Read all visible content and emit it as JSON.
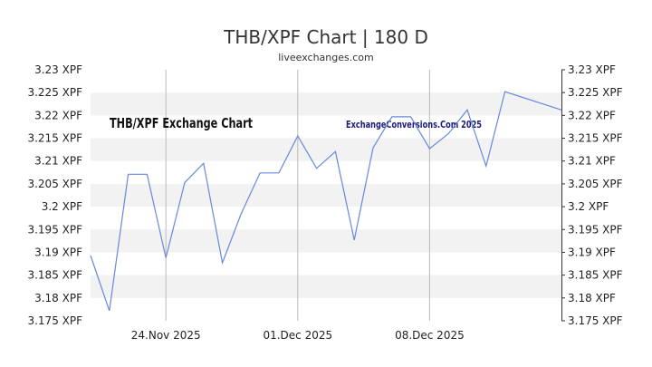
{
  "chart_data": {
    "type": "line",
    "title": "THB/XPF Chart | 180 D",
    "subtitle": "liveexchanges.com",
    "watermark_left": "THB/XPF Exchange Chart",
    "watermark_right": "ExchangeConversions.Com 2025",
    "y_unit": "XPF",
    "ylim": [
      3.175,
      3.23
    ],
    "y_ticks": [
      "3.23 XPF",
      "3.225 XPF",
      "3.22 XPF",
      "3.215 XPF",
      "3.21 XPF",
      "3.205 XPF",
      "3.2 XPF",
      "3.195 XPF",
      "3.19 XPF",
      "3.185 XPF",
      "3.18 XPF",
      "3.175 XPF"
    ],
    "y_tick_values": [
      3.23,
      3.225,
      3.22,
      3.215,
      3.21,
      3.205,
      3.2,
      3.195,
      3.19,
      3.185,
      3.18,
      3.175
    ],
    "x_ticks": [
      {
        "label": "24.Nov 2025",
        "date": "2025-11-24"
      },
      {
        "label": "01.Dec 2025",
        "date": "2025-12-01"
      },
      {
        "label": "08.Dec 2025",
        "date": "2025-12-08"
      }
    ],
    "x_range": [
      "2025-11-20",
      "2025-12-15"
    ],
    "series": [
      {
        "color": "#6688dd",
        "points": [
          {
            "x": "2025-11-20",
            "y": 3.1893
          },
          {
            "x": "2025-11-21",
            "y": 3.1772
          },
          {
            "x": "2025-11-22",
            "y": 3.2071
          },
          {
            "x": "2025-11-23",
            "y": 3.2071
          },
          {
            "x": "2025-11-24",
            "y": 3.1888
          },
          {
            "x": "2025-11-25",
            "y": 3.2053
          },
          {
            "x": "2025-11-26",
            "y": 3.2095
          },
          {
            "x": "2025-11-27",
            "y": 3.1877
          },
          {
            "x": "2025-11-28",
            "y": 3.1985
          },
          {
            "x": "2025-11-29",
            "y": 3.2074
          },
          {
            "x": "2025-11-30",
            "y": 3.2074
          },
          {
            "x": "2025-12-01",
            "y": 3.2155
          },
          {
            "x": "2025-12-02",
            "y": 3.2084
          },
          {
            "x": "2025-12-03",
            "y": 3.2121
          },
          {
            "x": "2025-12-04",
            "y": 3.1927
          },
          {
            "x": "2025-12-05",
            "y": 3.2129
          },
          {
            "x": "2025-12-06",
            "y": 3.2197
          },
          {
            "x": "2025-12-07",
            "y": 3.2197
          },
          {
            "x": "2025-12-08",
            "y": 3.2127
          },
          {
            "x": "2025-12-09",
            "y": 3.216
          },
          {
            "x": "2025-12-10",
            "y": 3.2212
          },
          {
            "x": "2025-12-11",
            "y": 3.2089
          },
          {
            "x": "2025-12-12",
            "y": 3.2252
          },
          {
            "x": "2025-12-15",
            "y": 3.2212
          }
        ]
      }
    ],
    "grid": true,
    "band_color": "#f2f2f2",
    "vgrid_color": "#bbbbbb"
  }
}
